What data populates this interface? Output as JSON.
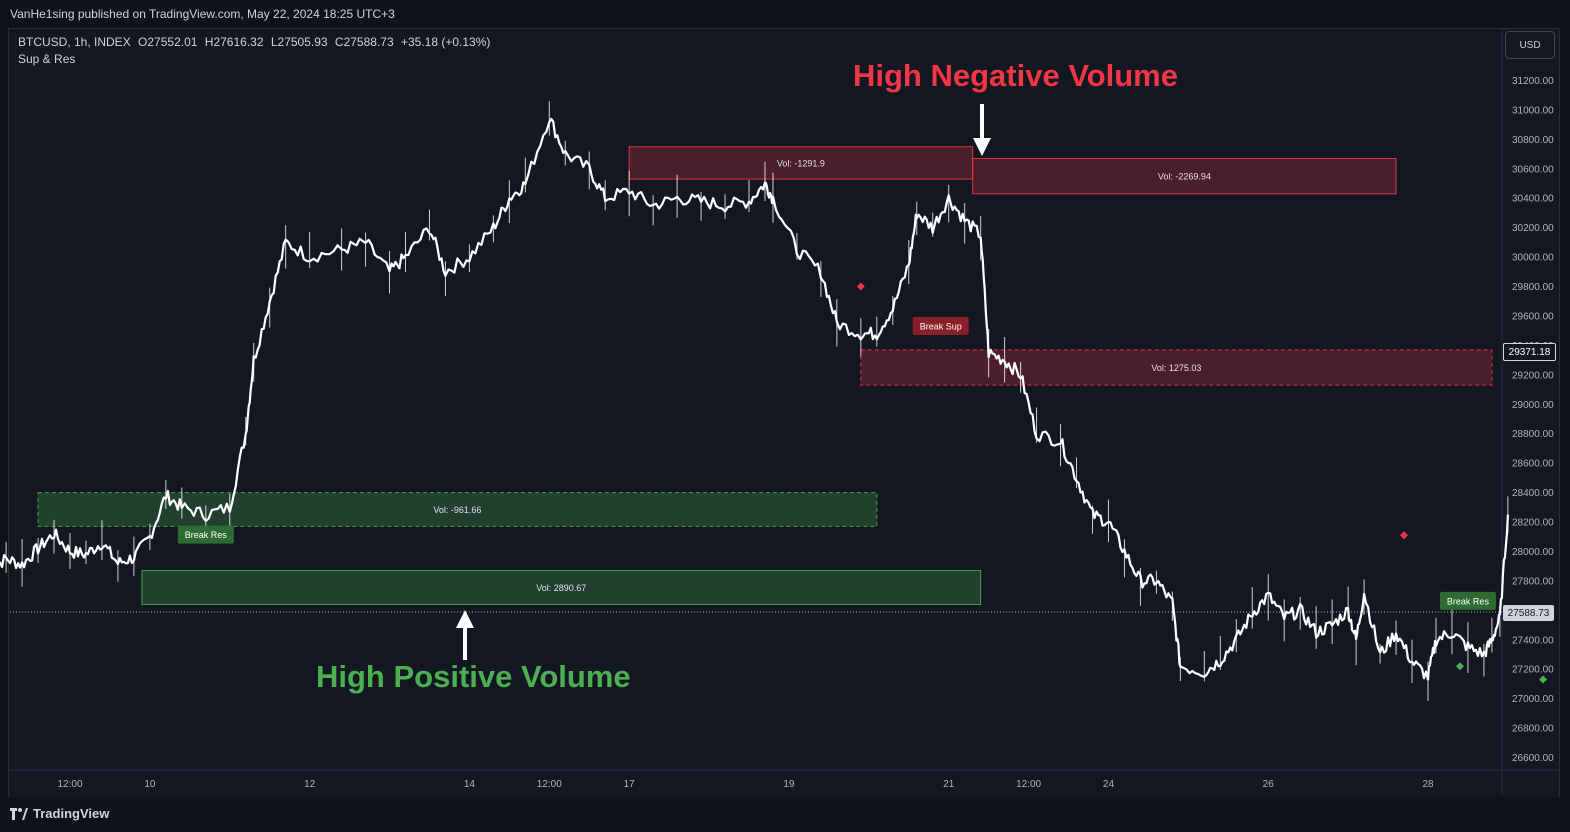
{
  "header": {
    "publish_text": "VanHe1sing published on TradingView.com, May 22, 2024 18:25 UTC+3"
  },
  "symbol": {
    "name": "BTCUSD, 1h, INDEX",
    "open": "O27552.01",
    "high": "H27616.32",
    "low": "L27505.93",
    "close": "C27588.73",
    "change": "+35.18 (+0.13%)"
  },
  "indicator": {
    "name": "Sup & Res"
  },
  "currency_button": "USD",
  "price_tags": {
    "current": "29371.18",
    "crosshair": "27588.73"
  },
  "annotations": {
    "high_negative": "High Negative Volume",
    "high_positive": "High Positive Volume"
  },
  "footer": {
    "brand": "TradingView"
  },
  "colors": {
    "background": "#131722",
    "bearish_zone": "#f23645",
    "bullish_zone": "#4caf50",
    "negative_text": "#f23645",
    "positive_text": "#4caf50",
    "candle": "#ffffff"
  },
  "chart_data": {
    "type": "candlestick",
    "symbol": "BTCUSD",
    "interval": "1h",
    "y_axis": {
      "ticks": [
        31200,
        31000,
        30800,
        30600,
        30400,
        30200,
        30000,
        29800,
        29600,
        29400,
        29200,
        29000,
        28800,
        28600,
        28400,
        28200,
        28000,
        27800,
        27600,
        27400,
        27200,
        27000,
        26800,
        26600
      ],
      "tick_labels": [
        "31200.00",
        "31000.00",
        "30800.00",
        "30600.00",
        "30400.00",
        "30200.00",
        "30000.00",
        "29800.00",
        "29600.00",
        "29400.00",
        "29200.00",
        "29000.00",
        "28800.00",
        "28600.00",
        "28400.00",
        "28200.00",
        "28000.00",
        "27800.00",
        "27600.00",
        "27400.00",
        "27200.00",
        "27000.00",
        "26800.00",
        "26600.00"
      ],
      "range": [
        26500,
        31400
      ]
    },
    "x_axis": {
      "tick_labels": [
        "12:00",
        "10",
        "12",
        "14",
        "12:00",
        "17",
        "19",
        "21",
        "12:00",
        "24",
        "26",
        "28"
      ],
      "tick_days": [
        9.5,
        10,
        11,
        12,
        12.5,
        13,
        14,
        15,
        15.5,
        16,
        17,
        18
      ],
      "range": [
        9.0,
        18.5
      ]
    },
    "price_path": [
      [
        9.0,
        27880
      ],
      [
        9.1,
        27950
      ],
      [
        9.2,
        27910
      ],
      [
        9.3,
        28020
      ],
      [
        9.4,
        28120
      ],
      [
        9.5,
        28000
      ],
      [
        9.6,
        27980
      ],
      [
        9.7,
        28060
      ],
      [
        9.8,
        27920
      ],
      [
        9.9,
        27960
      ],
      [
        10.0,
        28100
      ],
      [
        10.1,
        28380
      ],
      [
        10.2,
        28300
      ],
      [
        10.35,
        28250
      ],
      [
        10.5,
        28300
      ],
      [
        10.6,
        28800
      ],
      [
        10.65,
        29300
      ],
      [
        10.75,
        29700
      ],
      [
        10.85,
        30100
      ],
      [
        11.0,
        30000
      ],
      [
        11.2,
        30050
      ],
      [
        11.35,
        30100
      ],
      [
        11.5,
        29900
      ],
      [
        11.6,
        30000
      ],
      [
        11.75,
        30200
      ],
      [
        11.85,
        29900
      ],
      [
        12.0,
        30000
      ],
      [
        12.15,
        30200
      ],
      [
        12.25,
        30400
      ],
      [
        12.35,
        30500
      ],
      [
        12.5,
        30950
      ],
      [
        12.6,
        30700
      ],
      [
        12.75,
        30600
      ],
      [
        12.85,
        30400
      ],
      [
        13.0,
        30450
      ],
      [
        13.15,
        30350
      ],
      [
        13.3,
        30400
      ],
      [
        13.45,
        30380
      ],
      [
        13.6,
        30350
      ],
      [
        13.75,
        30380
      ],
      [
        13.85,
        30500
      ],
      [
        13.9,
        30400
      ],
      [
        14.05,
        30050
      ],
      [
        14.2,
        29900
      ],
      [
        14.3,
        29550
      ],
      [
        14.45,
        29480
      ],
      [
        14.55,
        29480
      ],
      [
        14.65,
        29650
      ],
      [
        14.75,
        29950
      ],
      [
        14.8,
        30300
      ],
      [
        14.9,
        30200
      ],
      [
        15.0,
        30400
      ],
      [
        15.1,
        30250
      ],
      [
        15.2,
        30150
      ],
      [
        15.25,
        29350
      ],
      [
        15.35,
        29300
      ],
      [
        15.45,
        29200
      ],
      [
        15.55,
        28800
      ],
      [
        15.7,
        28750
      ],
      [
        15.8,
        28500
      ],
      [
        15.9,
        28250
      ],
      [
        16.0,
        28200
      ],
      [
        16.1,
        28000
      ],
      [
        16.2,
        27800
      ],
      [
        16.3,
        27800
      ],
      [
        16.4,
        27650
      ],
      [
        16.45,
        27220
      ],
      [
        16.6,
        27180
      ],
      [
        16.7,
        27260
      ],
      [
        16.8,
        27400
      ],
      [
        16.9,
        27580
      ],
      [
        17.0,
        27700
      ],
      [
        17.1,
        27550
      ],
      [
        17.2,
        27600
      ],
      [
        17.3,
        27450
      ],
      [
        17.4,
        27500
      ],
      [
        17.5,
        27600
      ],
      [
        17.55,
        27400
      ],
      [
        17.6,
        27720
      ],
      [
        17.7,
        27300
      ],
      [
        17.8,
        27450
      ],
      [
        17.9,
        27250
      ],
      [
        18.0,
        27150
      ],
      [
        18.05,
        27400
      ],
      [
        18.15,
        27450
      ],
      [
        18.25,
        27350
      ],
      [
        18.35,
        27300
      ],
      [
        18.4,
        27400
      ],
      [
        18.45,
        27550
      ],
      [
        18.5,
        28250
      ]
    ],
    "zones": [
      {
        "label": "Vol: -1291.9",
        "kind": "negative",
        "x": [
          13.0,
          15.15
        ],
        "y": [
          30530,
          30750
        ]
      },
      {
        "label": "Vol: -2269.94",
        "kind": "negative",
        "x": [
          15.15,
          17.8
        ],
        "y": [
          30430,
          30670
        ]
      },
      {
        "label": "Vol: 1275.03",
        "kind": "negative",
        "x": [
          14.45,
          18.4
        ],
        "y": [
          29130,
          29370
        ]
      },
      {
        "label": "Vol: -961.66",
        "kind": "positive",
        "x": [
          9.3,
          14.55
        ],
        "y": [
          28170,
          28400
        ]
      },
      {
        "label": "Vol: 2890.67",
        "kind": "positive",
        "x": [
          9.95,
          15.2
        ],
        "y": [
          27640,
          27870
        ]
      }
    ],
    "signals": [
      {
        "label": "Break Res",
        "kind": "positive",
        "x": 10.35,
        "y": 28250
      },
      {
        "label": "Break Sup",
        "kind": "negative",
        "x": 14.95,
        "y": 29450
      },
      {
        "label": "Break Res",
        "kind": "positive",
        "x": 18.25,
        "y": 27800
      }
    ]
  }
}
